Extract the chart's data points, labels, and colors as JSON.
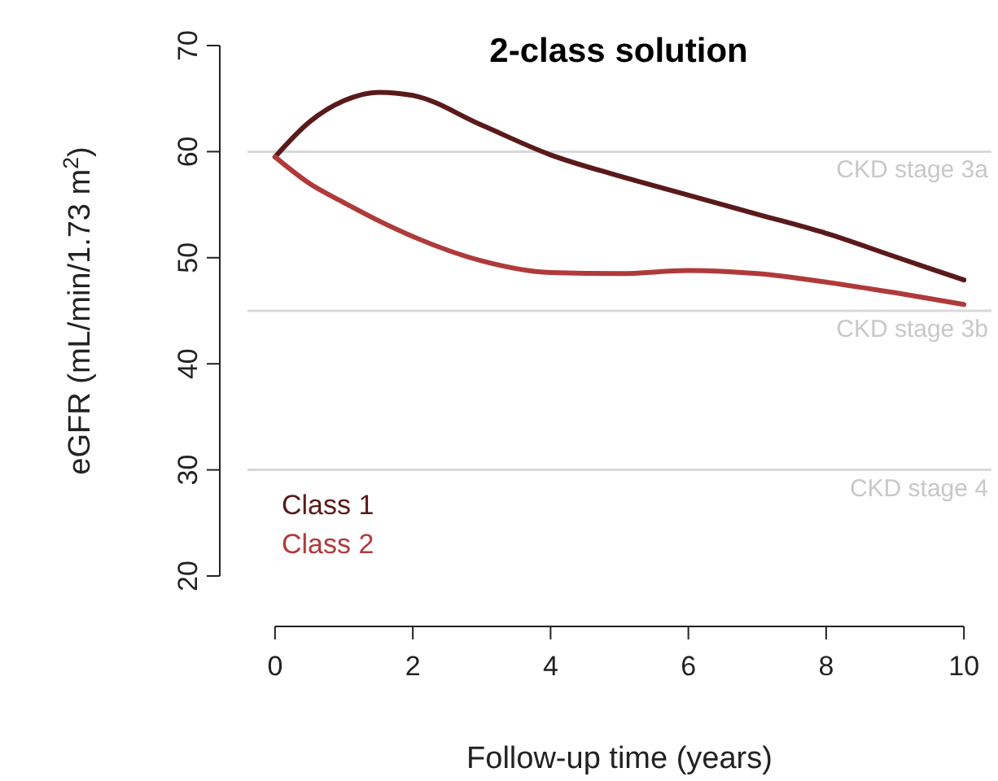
{
  "chart_data": {
    "type": "line",
    "title": "2-class solution",
    "xlabel": "Follow-up time (years)",
    "ylabel": "eGFR (mL/min/1.73 m$^{2}$)",
    "xlim": [
      -0.4,
      10.4
    ],
    "ylim": [
      20,
      70
    ],
    "xticks": [
      0,
      2,
      4,
      6,
      8,
      10
    ],
    "yticks": [
      20,
      30,
      40,
      50,
      60,
      70
    ],
    "grid": false,
    "legend": "bottom left",
    "marker": "none",
    "line_style": "solid",
    "series": [
      {
        "name": "Class 1",
        "color": "#5a1a1a",
        "x": [
          0,
          0.5,
          1,
          1.5,
          2,
          3,
          4,
          5,
          6,
          7,
          8,
          9,
          10
        ],
        "values": [
          59.5,
          62.8,
          64.8,
          65.6,
          65.3,
          62.5,
          59.7,
          57.7,
          55.9,
          54.1,
          52.3,
          50.1,
          47.9
        ]
      },
      {
        "name": "Class 2",
        "color": "#b03a3a",
        "x": [
          0,
          0.5,
          1,
          1.5,
          2,
          3,
          4,
          5,
          6,
          7,
          8,
          9,
          10
        ],
        "values": [
          59.5,
          57,
          55.2,
          53.5,
          52,
          49.7,
          48.6,
          48.5,
          48.8,
          48.5,
          47.7,
          46.7,
          45.6
        ]
      }
    ],
    "ref_lines": [
      {
        "axis": "y",
        "value": 60,
        "label": "CKD stage 3a",
        "color": "#d9d9d9"
      },
      {
        "axis": "y",
        "value": 45,
        "label": "CKD stage 3b",
        "color": "#d9d9d9"
      },
      {
        "axis": "y",
        "value": 30,
        "label": "CKD stage 4",
        "color": "#d9d9d9"
      }
    ]
  }
}
